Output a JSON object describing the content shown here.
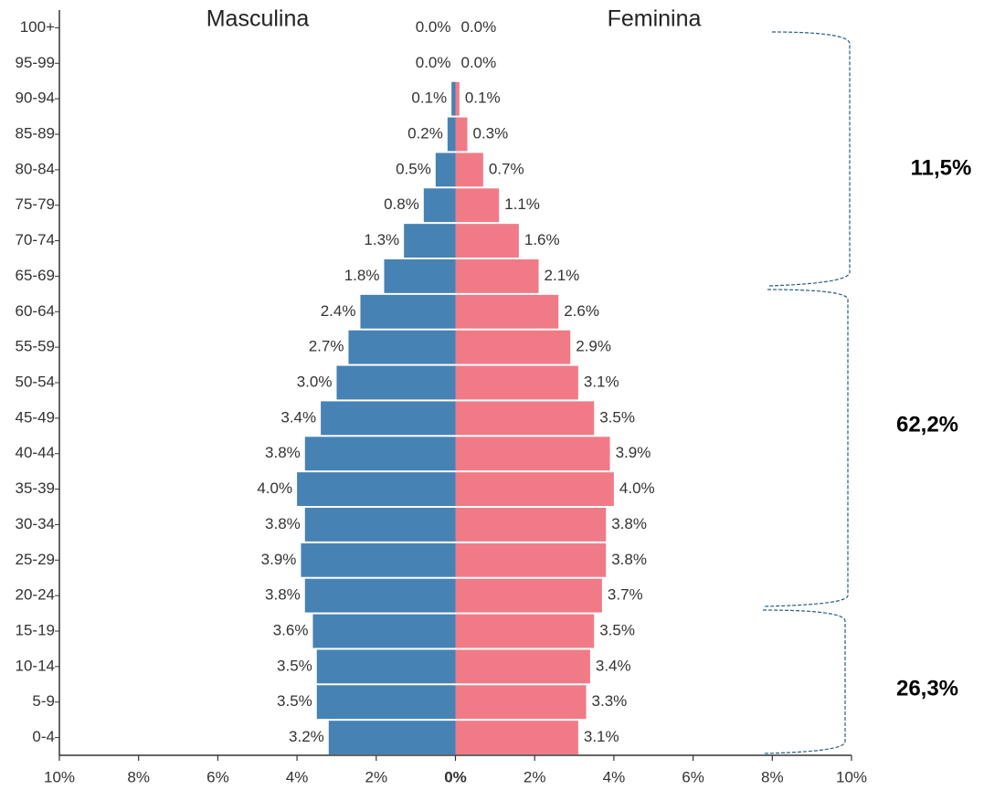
{
  "chart_data": {
    "type": "pyramid",
    "categories": [
      "100+",
      "95-99",
      "90-94",
      "85-89",
      "80-84",
      "75-79",
      "70-74",
      "65-69",
      "60-64",
      "55-59",
      "50-54",
      "45-49",
      "40-44",
      "35-39",
      "30-34",
      "25-29",
      "20-24",
      "15-19",
      "10-14",
      "5-9",
      "0-4"
    ],
    "series": [
      {
        "name": "Masculina",
        "color": "#4682b4",
        "values": [
          0,
          0,
          -0.1,
          -0.2,
          -0.5,
          -0.8,
          -1.3,
          -1.8,
          -2.4,
          -2.7,
          -3.0,
          -3.4,
          -3.8,
          -4.0,
          -3.8,
          -3.9,
          -3.8,
          -3.6,
          -3.5,
          -3.5,
          -3.2
        ],
        "value_labels": [
          "0.0%",
          "0.0%",
          "0.1%",
          "0.2%",
          "0.5%",
          "0.8%",
          "1.3%",
          "1.8%",
          "2.4%",
          "2.7%",
          "3.0%",
          "3.4%",
          "3.8%",
          "4.0%",
          "3.8%",
          "3.9%",
          "3.8%",
          "3.6%",
          "3.5%",
          "3.5%",
          "3.2%"
        ]
      },
      {
        "name": "Feminina",
        "color": "#f07b87",
        "values": [
          0,
          0,
          0.1,
          0.3,
          0.7,
          1.1,
          1.6,
          2.1,
          2.6,
          2.9,
          3.1,
          3.5,
          3.9,
          4.0,
          3.8,
          3.8,
          3.7,
          3.5,
          3.4,
          3.3,
          3.1
        ],
        "value_labels": [
          "0.0%",
          "0.0%",
          "0.1%",
          "0.3%",
          "0.7%",
          "1.1%",
          "1.6%",
          "2.1%",
          "2.6%",
          "2.9%",
          "3.1%",
          "3.5%",
          "3.9%",
          "4.0%",
          "3.8%",
          "3.8%",
          "3.7%",
          "3.5%",
          "3.4%",
          "3.3%",
          "3.1%"
        ]
      }
    ],
    "xlim": [
      -10,
      10
    ],
    "xticks": [
      {
        "value": -10,
        "label": "10%"
      },
      {
        "value": -8,
        "label": "8%"
      },
      {
        "value": -6,
        "label": "6%"
      },
      {
        "value": -4,
        "label": "4%"
      },
      {
        "value": -2,
        "label": "2%"
      },
      {
        "value": 0,
        "label": "0%"
      },
      {
        "value": 2,
        "label": "2%"
      },
      {
        "value": 4,
        "label": "4%"
      },
      {
        "value": 6,
        "label": "6%"
      },
      {
        "value": 8,
        "label": "8%"
      },
      {
        "value": 10,
        "label": "10%"
      }
    ],
    "annotations": [
      "11,5%",
      "62,2%",
      "26,3%"
    ]
  }
}
